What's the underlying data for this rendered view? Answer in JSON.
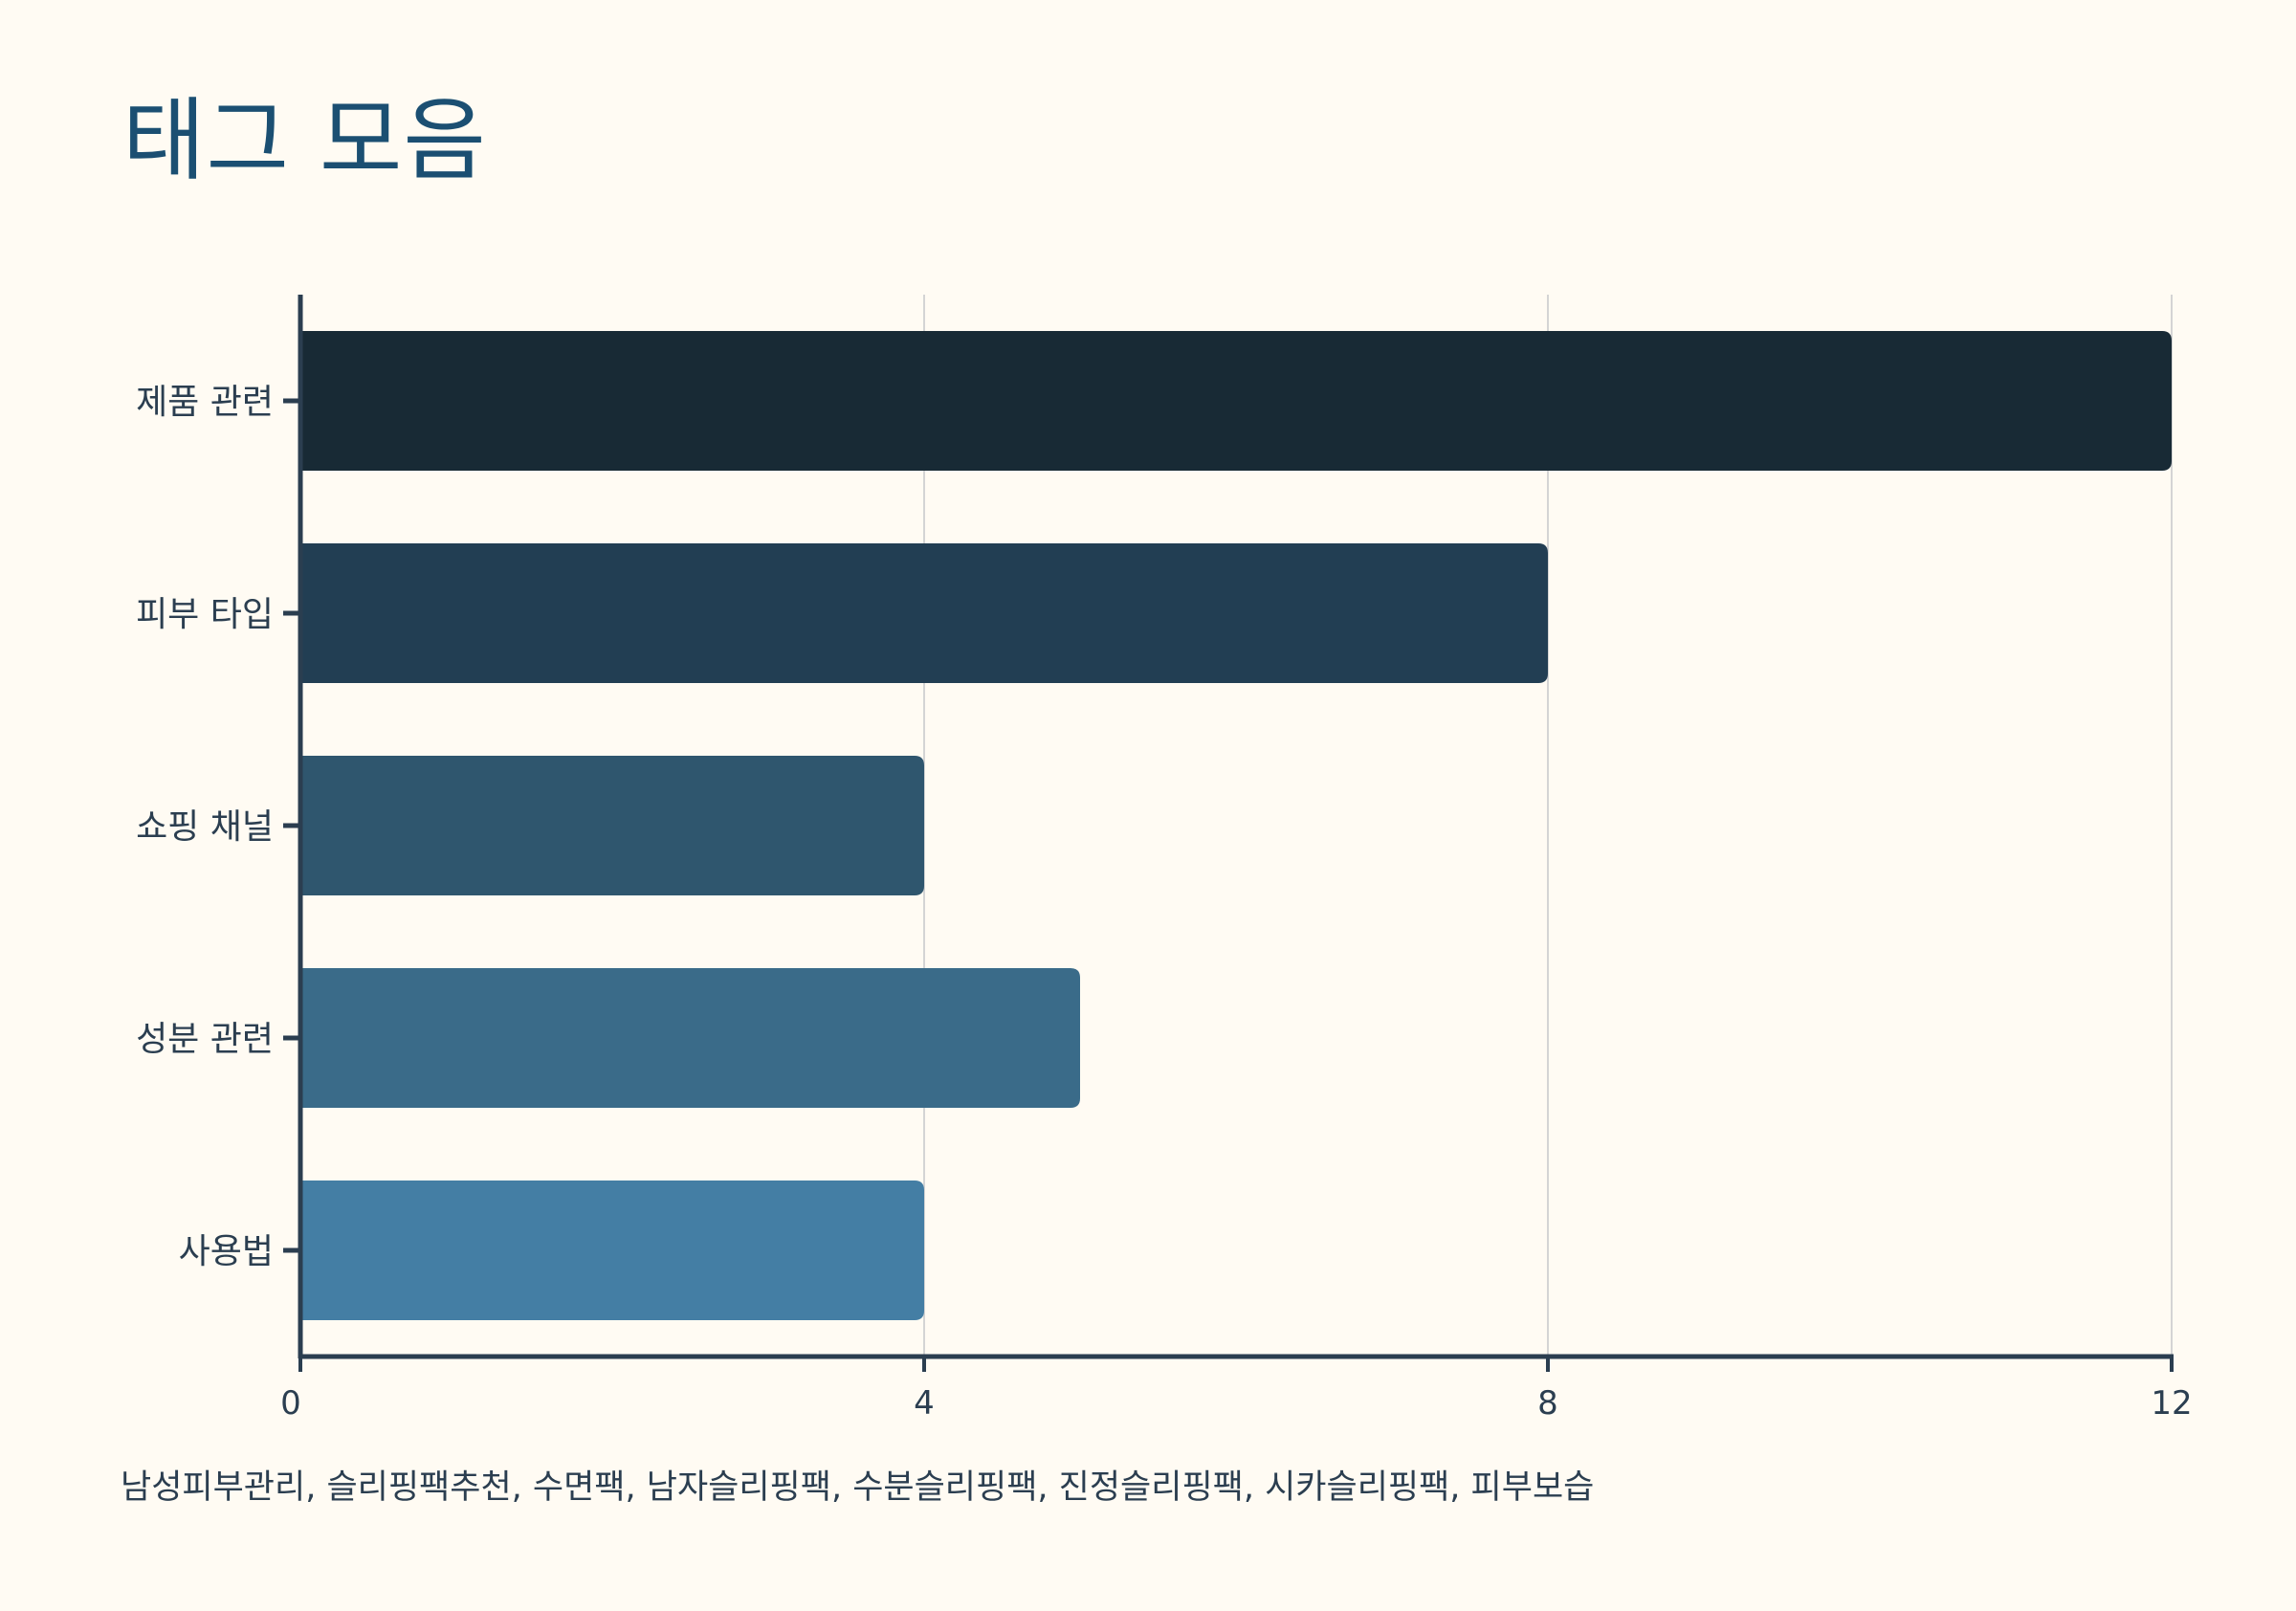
{
  "title": "태그 모음",
  "tags_text": "남성피부관리, 슬리핑팩추천, 수면팩, 남자슬리핑팩, 수분슬리핑팩, 진정슬리핑팩, 시카슬리핑팩, 피부보습",
  "chart_data": {
    "type": "bar",
    "orientation": "horizontal",
    "title": "태그 모음",
    "categories": [
      "제품 관련",
      "피부 타입",
      "쇼핑 채널",
      "성분 관련",
      "사용법"
    ],
    "values": [
      12,
      8,
      4,
      5,
      4
    ],
    "xlim": [
      0,
      12
    ],
    "xticks": [
      0,
      4,
      8,
      12
    ],
    "xlabel": "",
    "ylabel": "",
    "grid": "vertical",
    "colors": [
      "#182a35",
      "#223e53",
      "#2f566e",
      "#3a6b89",
      "#447ea4"
    ],
    "axis_color": "#2b3e50",
    "grid_color": "#d4d4d4"
  }
}
